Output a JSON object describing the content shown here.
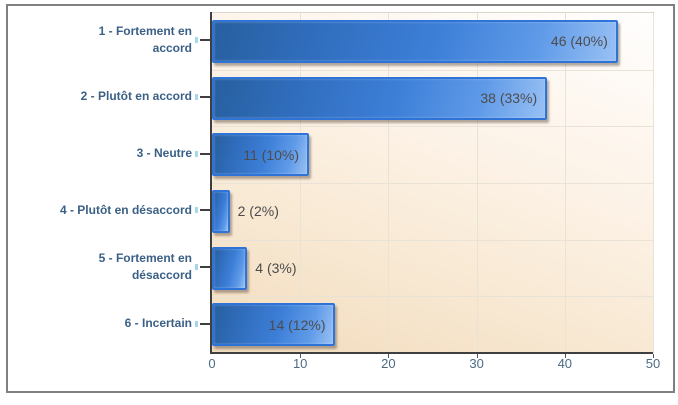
{
  "chart_data": {
    "type": "bar",
    "orientation": "horizontal",
    "title": "",
    "categories": [
      "1 - Fortement en accord",
      "2 - Plutôt en accord",
      "3 - Neutre",
      "4 - Plutôt en désaccord",
      "5 - Fortement en désaccord",
      "6 - Incertain"
    ],
    "values": [
      46,
      38,
      11,
      2,
      4,
      14
    ],
    "value_labels": [
      "46 (40%)",
      "38 (33%)",
      "11 (10%)",
      "2 (2%)",
      "4 (3%)",
      "14 (12%)"
    ],
    "xlabel": "",
    "ylabel": "",
    "xlim": [
      0,
      50
    ],
    "x_ticks": [
      "0",
      "10",
      "20",
      "30",
      "40",
      "50"
    ],
    "grid": true,
    "legend": "none",
    "colors": {
      "bar_border": "#2e74d8",
      "bar_fill_dark": "#27609f",
      "bar_fill_light": "#93bdf3",
      "plot_bg_top": "#fffefe",
      "plot_bg_bottom": "#f1dbbc",
      "gridline": "#e9e2d6",
      "axis_line": "#3f3f3f",
      "category_label": "#3b6086",
      "axis_tick_label": "#4c6b84",
      "value_label": "#4c4c4c",
      "frame_border": "#808080",
      "minor_tick": "#a7d6ef"
    }
  }
}
